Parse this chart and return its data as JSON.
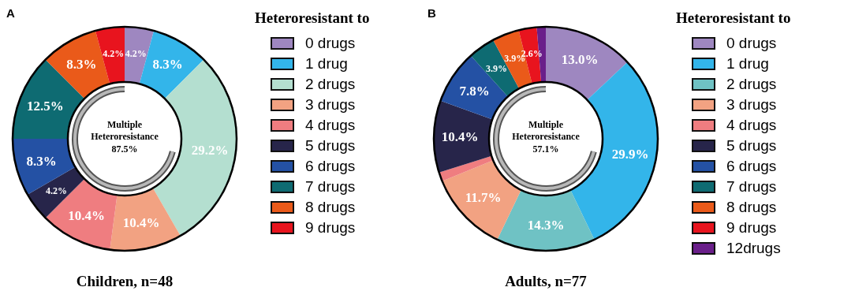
{
  "chart_data": [
    {
      "type": "donut",
      "title": "Children, n=48",
      "legend_title": "Heteroresistant to",
      "legend": "right",
      "annotations": [
        "A",
        "Multiple Heteroresistance",
        "87.5%"
      ],
      "categories": [
        "0 drugs",
        "1 drug",
        "2 drugs",
        "3 drugs",
        "4 drugs",
        "5 drugs",
        "6 drugs",
        "7 drugs",
        "8 drugs",
        "9 drugs"
      ],
      "values": [
        4.2,
        8.3,
        29.2,
        10.4,
        10.4,
        4.2,
        8.3,
        12.5,
        8.3,
        4.2
      ],
      "value_labels": [
        "4.2%",
        "8.3%",
        "29.2%",
        "10.4%",
        "10.4%",
        "4.2%",
        "8.3%",
        "12.5%",
        "8.3%",
        "4.2%"
      ],
      "colors": [
        "#9e87c0",
        "#33b5ea",
        "#b4dfd0",
        "#f2a282",
        "#ef7d80",
        "#27254a",
        "#2451a4",
        "#0e6b72",
        "#ea5a1a",
        "#e8141e"
      ]
    },
    {
      "type": "donut",
      "title": "Adults, n=77",
      "legend_title": "Heteroresistant to",
      "legend": "right",
      "annotations": [
        "B",
        "Multiple Heteroresistance",
        "57.1%"
      ],
      "categories": [
        "0 drugs",
        "1 drug",
        "2 drugs",
        "3 drugs",
        "4 drugs",
        "5 drugs",
        "6 drugs",
        "7 drugs",
        "8 drugs",
        "9 drugs",
        "12drugs"
      ],
      "values": [
        13.0,
        29.9,
        14.3,
        11.7,
        1.3,
        10.4,
        7.8,
        3.9,
        3.9,
        2.6,
        1.3
      ],
      "value_labels": [
        "13.0%",
        "29.9%",
        "14.3%",
        "11.7%",
        null,
        "10.4%",
        "7.8%",
        "3.9%",
        "3.9%",
        "2.6%",
        null
      ],
      "colors": [
        "#9e87c0",
        "#33b5ea",
        "#6fc2c4",
        "#f2a282",
        "#ef7d80",
        "#27254a",
        "#2451a4",
        "#0e6b72",
        "#ea5a1a",
        "#e8141e",
        "#6a1f8a"
      ]
    }
  ]
}
